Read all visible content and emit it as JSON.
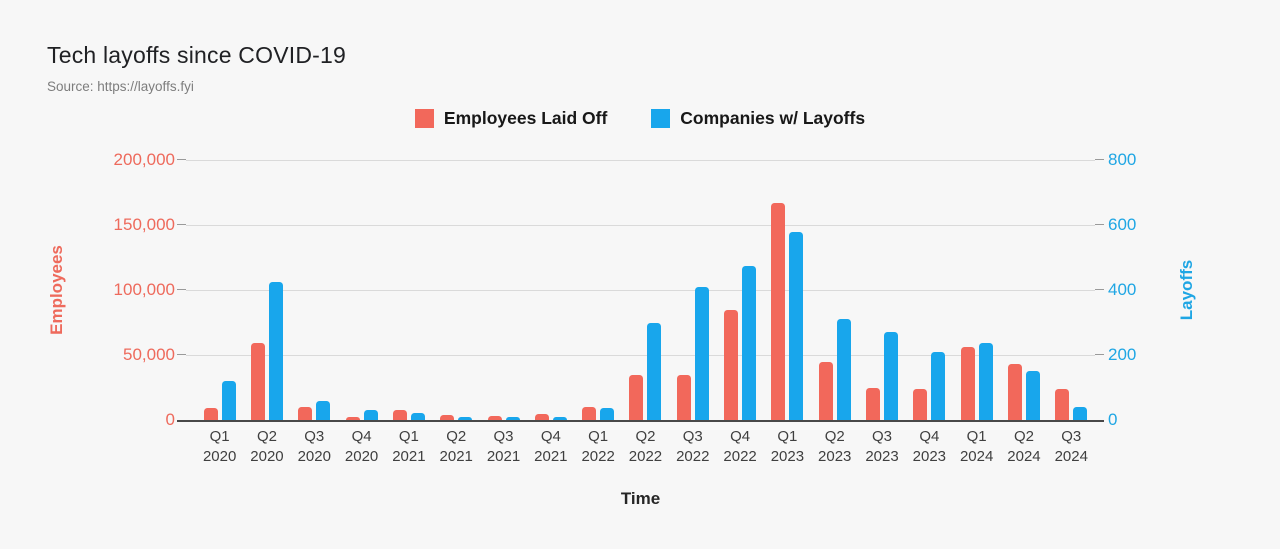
{
  "header": {
    "title": "Tech layoffs since COVID-19",
    "source": "Source: https://layoffs.fyi"
  },
  "chart_data": {
    "type": "bar",
    "title": "Tech layoffs since COVID-19",
    "source": "Source: https://layoffs.fyi",
    "xlabel": "Time",
    "legend_position": "top",
    "grid": true,
    "categories": [
      "Q1 2020",
      "Q2 2020",
      "Q3 2020",
      "Q4 2020",
      "Q1 2021",
      "Q2 2021",
      "Q3 2021",
      "Q4 2021",
      "Q1 2022",
      "Q2 2022",
      "Q3 2022",
      "Q4 2022",
      "Q1 2023",
      "Q2 2023",
      "Q3 2023",
      "Q4 2023",
      "Q1 2024",
      "Q2 2024",
      "Q3 2024"
    ],
    "series": [
      {
        "name": "Employees Laid Off",
        "axis": "left",
        "color": "#f2685b",
        "values": [
          9000,
          59000,
          10000,
          2300,
          8000,
          4000,
          3000,
          4600,
          10000,
          35000,
          35000,
          85000,
          167000,
          45000,
          25000,
          24000,
          56000,
          43000,
          24000
        ]
      },
      {
        "name": "Companies w/ Layoffs",
        "axis": "right",
        "color": "#18a6ec",
        "values": [
          120,
          425,
          60,
          30,
          22,
          8,
          10,
          9,
          37,
          300,
          410,
          475,
          580,
          310,
          270,
          210,
          237,
          150,
          40
        ]
      }
    ],
    "left_axis": {
      "label": "Employees",
      "color": "#ee6a5c",
      "min": 0,
      "max": 200000,
      "ticks": [
        "0",
        "50,000",
        "100,000",
        "150,000",
        "200,000"
      ]
    },
    "right_axis": {
      "label": "Layoffs",
      "color": "#1fa6e4",
      "min": 0,
      "max": 800,
      "ticks": [
        "0",
        "200",
        "400",
        "600",
        "800"
      ]
    }
  }
}
